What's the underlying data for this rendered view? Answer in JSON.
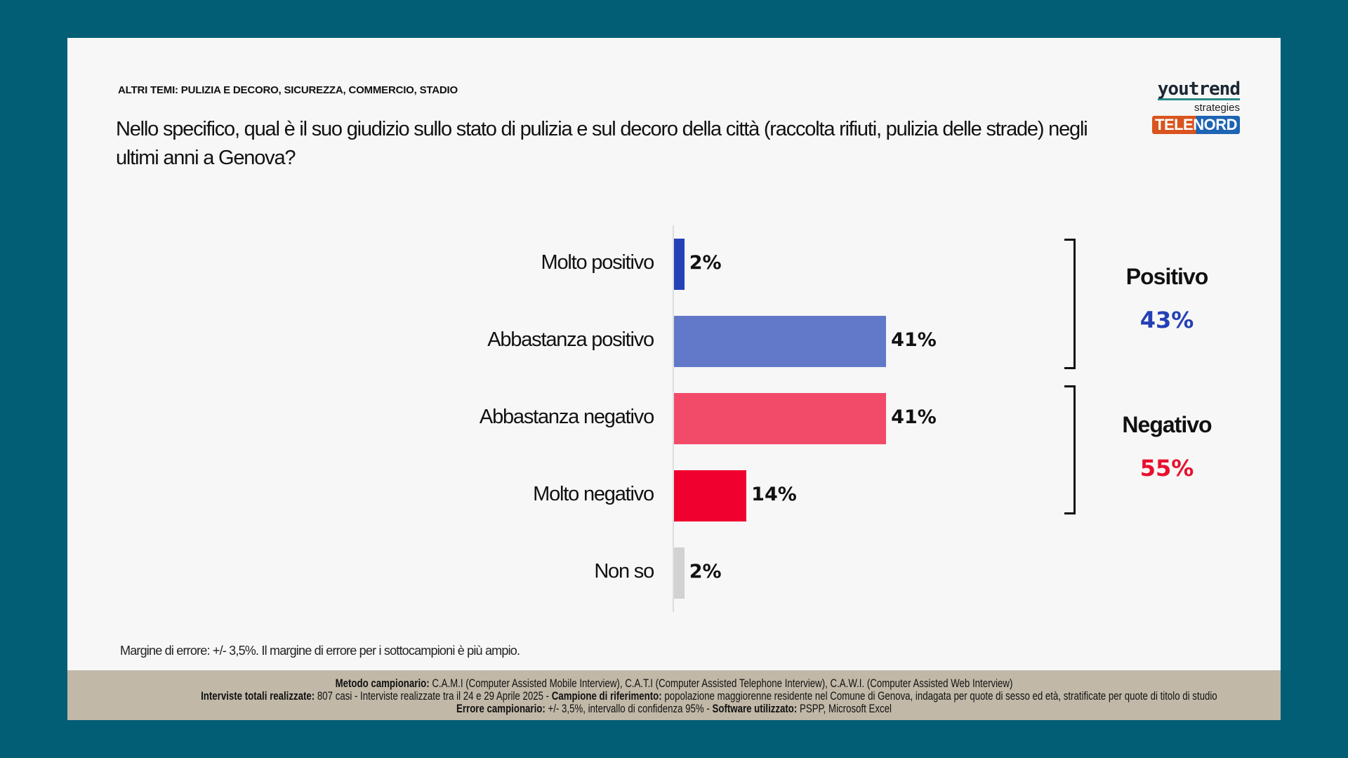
{
  "header": {
    "kicker": "ALTRI TEMI: PULIZIA E DECORO, SICUREZZA, COMMERCIO, STADIO",
    "question": "Nello specifico, qual è il suo giudizio sullo stato di pulizia e sul decoro della città (raccolta rifiuti, pulizia delle strade) negli ultimi anni a Genova?"
  },
  "logo": {
    "brand": "youtrend",
    "sub": "strategies",
    "partner": "TELENORD"
  },
  "chart_data": {
    "type": "bar",
    "orientation": "horizontal",
    "categories": [
      "Molto positivo",
      "Abbastanza positivo",
      "Abbastanza negativo",
      "Molto negativo",
      "Non so"
    ],
    "values": [
      2,
      41,
      41,
      14,
      2
    ],
    "value_labels": [
      "2%",
      "41%",
      "41%",
      "14%",
      "2%"
    ],
    "colors": [
      "#2541b8",
      "#6179c8",
      "#f24b6a",
      "#f0002e",
      "#d2d2d2"
    ],
    "groups": [
      {
        "name": "Positivo",
        "value": "43%",
        "color": "#2340b5"
      },
      {
        "name": "Negativo",
        "value": "55%",
        "color": "#e8102e"
      }
    ]
  },
  "note": "Margine di errore: +/- 3,5%. Il margine di errore per i sottocampioni è più ampio.",
  "footer": {
    "l1b": "Metodo campionario:",
    "l1": " C.A.M.I (Computer Assisted Mobile Interview), C.A.T.I (Computer Assisted Telephone Interview), C.A.W.I. (Computer Assisted Web Interview)",
    "l2b": "Interviste totali realizzate:",
    "l2": " 807 casi - Interviste realizzate tra il 24 e 29 Aprile 2025 - ",
    "l2b2": "Campione di riferimento:",
    "l2c": " popolazione maggiorenne residente nel Comune di Genova, indagata per quote di sesso ed età, stratificate per quote di titolo di studio",
    "l3b": "Errore campionario:",
    "l3": " +/- 3,5%, intervallo di confidenza 95% - ",
    "l3b2": "Software utilizzato:",
    "l3c": " PSPP, Microsoft Excel"
  }
}
